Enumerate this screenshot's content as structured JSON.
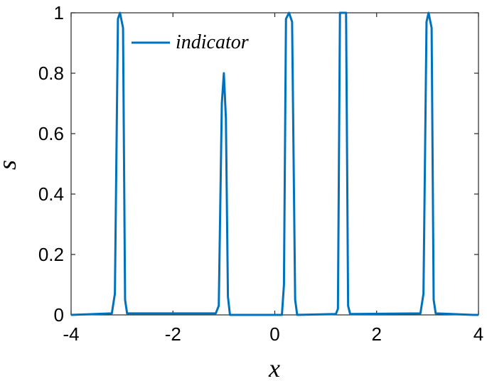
{
  "chart_data": {
    "type": "line",
    "xlabel": "x",
    "ylabel": "s",
    "x": [
      -4,
      -3.2,
      -3.14,
      -3.08,
      -3.04,
      -2.98,
      -2.94,
      -2.9,
      -1.16,
      -1.1,
      -1.04,
      -1.0,
      -0.96,
      -0.92,
      -0.88,
      0.14,
      0.18,
      0.22,
      0.28,
      0.34,
      0.4,
      0.44,
      1.2,
      1.24,
      1.28,
      1.4,
      1.44,
      1.48,
      2.86,
      2.92,
      2.98,
      3.02,
      3.08,
      3.12,
      3.16,
      3.9,
      4
    ],
    "series": [
      {
        "name": "indicator",
        "color": "#0072bd",
        "values": [
          0,
          0.005,
          0.07,
          0.98,
          1,
          0.95,
          0.05,
          0.005,
          0.005,
          0.03,
          0.7,
          0.8,
          0.65,
          0.06,
          0,
          0,
          0.1,
          0.98,
          1,
          0.97,
          0.05,
          0,
          0.003,
          0.02,
          1,
          1,
          0.03,
          0.003,
          0.005,
          0.07,
          0.97,
          1,
          0.95,
          0.05,
          0.005,
          0,
          0
        ]
      }
    ],
    "xlim": [
      -4,
      4
    ],
    "xticks": [
      -4,
      -2,
      0,
      2,
      4
    ],
    "ylim": [
      0,
      1
    ],
    "yticks": [
      0,
      0.2,
      0.4,
      0.6,
      0.8,
      1
    ],
    "legend": "top-left"
  }
}
